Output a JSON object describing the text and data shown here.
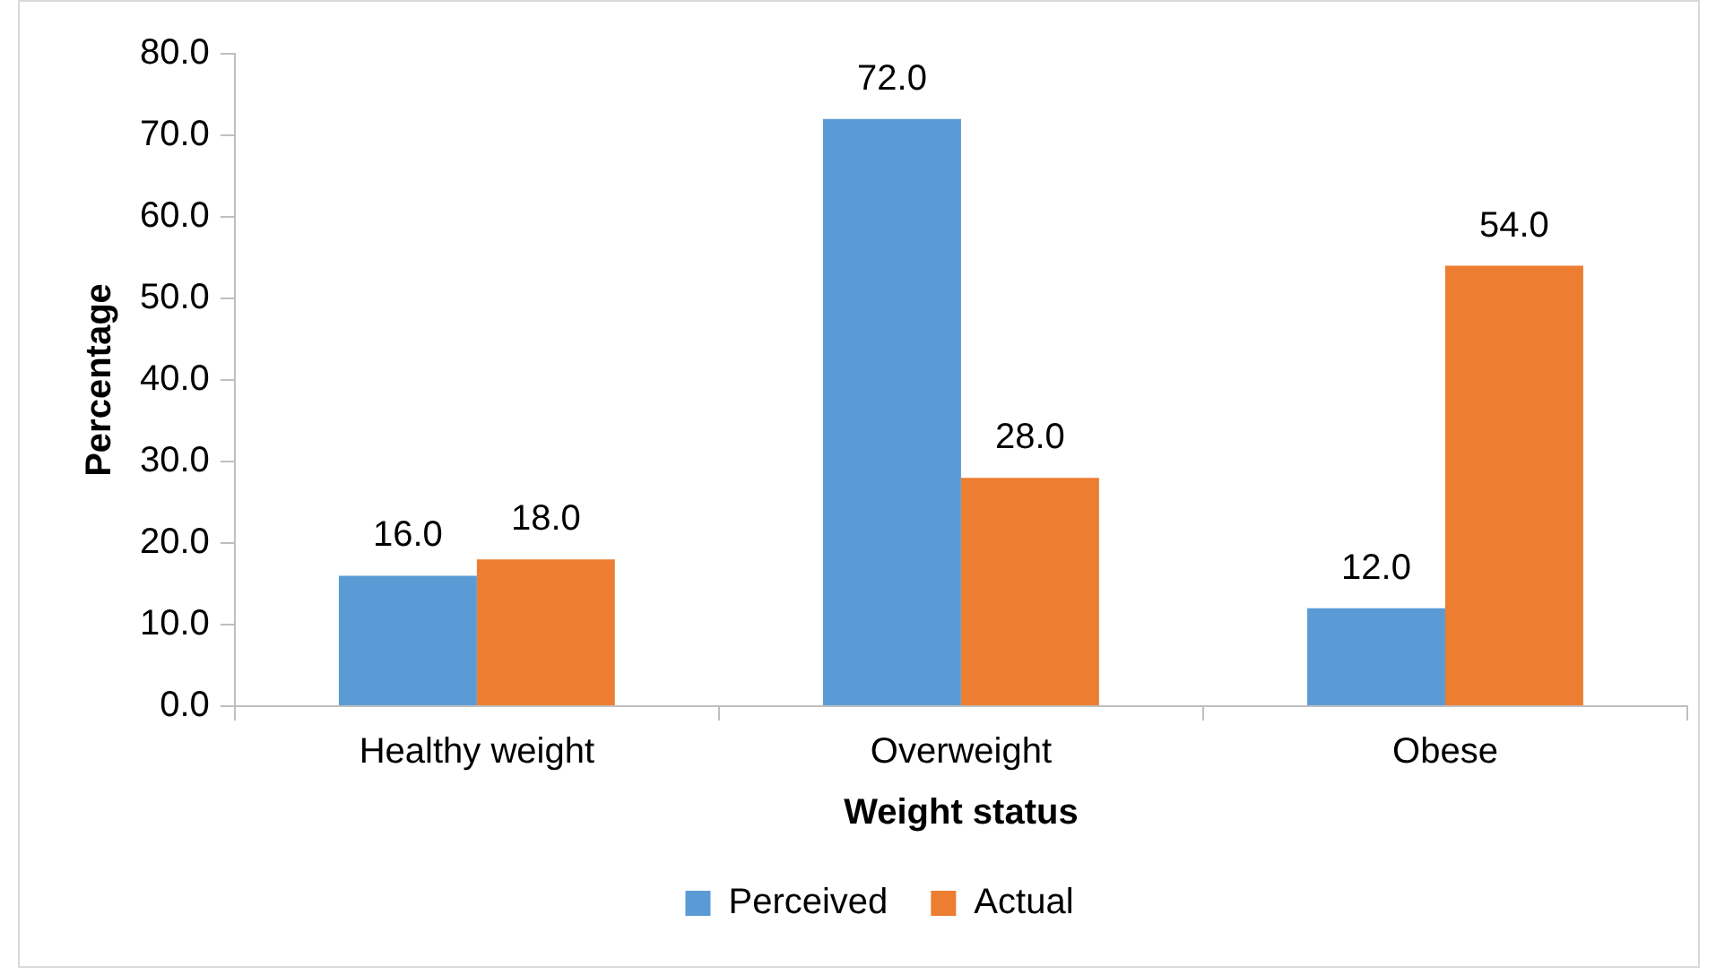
{
  "chart_data": {
    "type": "bar",
    "xlabel": "Weight status",
    "ylabel": "Percentage",
    "categories": [
      "Healthy weight",
      "Overweight",
      "Obese"
    ],
    "series": [
      {
        "name": "Perceived",
        "color": "#5b9bd5",
        "values": [
          16,
          72,
          12
        ],
        "value_labels": [
          "16.0",
          "72.0",
          "12.0"
        ]
      },
      {
        "name": "Actual",
        "color": "#ed7d31",
        "values": [
          18,
          28,
          54
        ],
        "value_labels": [
          "18.0",
          "28.0",
          "54.0"
        ]
      }
    ],
    "ylim": [
      0,
      80
    ],
    "yticks": [
      {
        "value": 0,
        "label": "0.0"
      },
      {
        "value": 10,
        "label": "10.0"
      },
      {
        "value": 20,
        "label": "20.0"
      },
      {
        "value": 30,
        "label": "30.0"
      },
      {
        "value": 40,
        "label": "40.0"
      },
      {
        "value": 50,
        "label": "50.0"
      },
      {
        "value": 60,
        "label": "60.0"
      },
      {
        "value": 70,
        "label": "70.0"
      },
      {
        "value": 80,
        "label": "80.0"
      }
    ],
    "grid": false,
    "legend": "bottom"
  }
}
